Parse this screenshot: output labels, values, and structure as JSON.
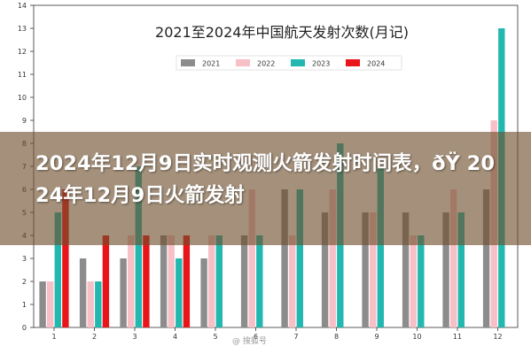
{
  "chart_data": {
    "type": "bar",
    "title": "2021至2024年中国航天发射次数(月记)",
    "xlabel": "",
    "ylabel": "",
    "categories": [
      "1",
      "2",
      "3",
      "4",
      "5",
      "6",
      "7",
      "8",
      "9",
      "10",
      "11",
      "12"
    ],
    "ylim": [
      0,
      14
    ],
    "yticks": [
      0,
      1,
      2,
      3,
      4,
      5,
      6,
      7,
      8,
      9,
      10,
      11,
      12,
      13,
      14
    ],
    "grid": false,
    "legend_position": "top-right",
    "series": [
      {
        "name": "2021",
        "color": "#8c8c8c",
        "values": [
          2,
          3,
          3,
          4,
          3,
          4,
          6,
          5,
          5,
          5,
          5,
          6
        ]
      },
      {
        "name": "2022",
        "color": "#f7bfc6",
        "values": [
          2,
          2,
          4,
          4,
          4,
          6,
          4,
          6,
          5,
          4,
          6,
          9
        ]
      },
      {
        "name": "2023",
        "color": "#22b8b0",
        "values": [
          5,
          2,
          7,
          3,
          4,
          4,
          6,
          8,
          7,
          4,
          5,
          13
        ]
      },
      {
        "name": "2024",
        "color": "#e8161a",
        "values": [
          6,
          4,
          4,
          4,
          null,
          null,
          null,
          null,
          null,
          null,
          null,
          null
        ]
      }
    ]
  },
  "overlay": {
    "headline": "2024年12月9日实时观测火箭发射时间表，ðŸ 2024年12月9日火箭发射"
  },
  "watermark": {
    "text": "@ 搜狐号"
  }
}
